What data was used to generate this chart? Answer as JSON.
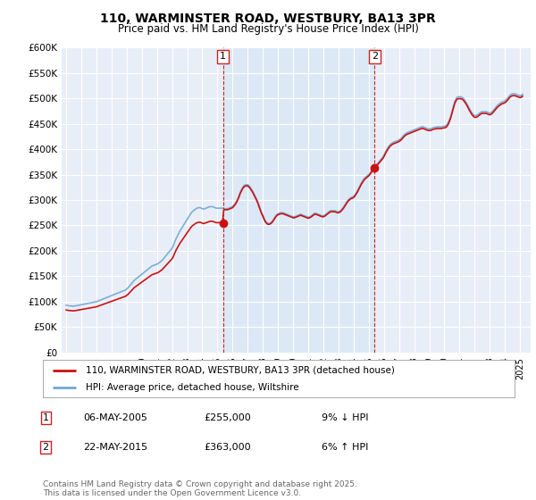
{
  "title": "110, WARMINSTER ROAD, WESTBURY, BA13 3PR",
  "subtitle": "Price paid vs. HM Land Registry's House Price Index (HPI)",
  "ylim": [
    0,
    600000
  ],
  "yticks": [
    0,
    50000,
    100000,
    150000,
    200000,
    250000,
    300000,
    350000,
    400000,
    450000,
    500000,
    550000,
    600000
  ],
  "xlim_start": 1994.7,
  "xlim_end": 2025.7,
  "background_color": "#ffffff",
  "plot_bg_color": "#e8eef8",
  "highlight_bg_color": "#dce8f5",
  "grid_color": "#ffffff",
  "line_color_property": "#cc1111",
  "line_color_hpi": "#6fa8d4",
  "legend_label_property": "110, WARMINSTER ROAD, WESTBURY, BA13 3PR (detached house)",
  "legend_label_hpi": "HPI: Average price, detached house, Wiltshire",
  "table_rows": [
    {
      "num": "1",
      "date": "06-MAY-2005",
      "price": "£255,000",
      "change": "9% ↓ HPI"
    },
    {
      "num": "2",
      "date": "22-MAY-2015",
      "price": "£363,000",
      "change": "6% ↑ HPI"
    }
  ],
  "footer": "Contains HM Land Registry data © Crown copyright and database right 2025.\nThis data is licensed under the Open Government Licence v3.0.",
  "sale1_year": 2005.37,
  "sale1_price": 255000,
  "sale2_year": 2015.38,
  "sale2_price": 363000,
  "hpi_years": [
    1995.0,
    1995.083,
    1995.167,
    1995.25,
    1995.333,
    1995.417,
    1995.5,
    1995.583,
    1995.667,
    1995.75,
    1995.833,
    1995.917,
    1996.0,
    1996.083,
    1996.167,
    1996.25,
    1996.333,
    1996.417,
    1996.5,
    1996.583,
    1996.667,
    1996.75,
    1996.833,
    1996.917,
    1997.0,
    1997.083,
    1997.167,
    1997.25,
    1997.333,
    1997.417,
    1997.5,
    1997.583,
    1997.667,
    1997.75,
    1997.833,
    1997.917,
    1998.0,
    1998.083,
    1998.167,
    1998.25,
    1998.333,
    1998.417,
    1998.5,
    1998.583,
    1998.667,
    1998.75,
    1998.833,
    1998.917,
    1999.0,
    1999.083,
    1999.167,
    1999.25,
    1999.333,
    1999.417,
    1999.5,
    1999.583,
    1999.667,
    1999.75,
    1999.833,
    1999.917,
    2000.0,
    2000.083,
    2000.167,
    2000.25,
    2000.333,
    2000.417,
    2000.5,
    2000.583,
    2000.667,
    2000.75,
    2000.833,
    2000.917,
    2001.0,
    2001.083,
    2001.167,
    2001.25,
    2001.333,
    2001.417,
    2001.5,
    2001.583,
    2001.667,
    2001.75,
    2001.833,
    2001.917,
    2002.0,
    2002.083,
    2002.167,
    2002.25,
    2002.333,
    2002.417,
    2002.5,
    2002.583,
    2002.667,
    2002.75,
    2002.833,
    2002.917,
    2003.0,
    2003.083,
    2003.167,
    2003.25,
    2003.333,
    2003.417,
    2003.5,
    2003.583,
    2003.667,
    2003.75,
    2003.833,
    2003.917,
    2004.0,
    2004.083,
    2004.167,
    2004.25,
    2004.333,
    2004.417,
    2004.5,
    2004.583,
    2004.667,
    2004.75,
    2004.833,
    2004.917,
    2005.0,
    2005.083,
    2005.167,
    2005.25,
    2005.333,
    2005.417,
    2005.5,
    2005.583,
    2005.667,
    2005.75,
    2005.833,
    2005.917,
    2006.0,
    2006.083,
    2006.167,
    2006.25,
    2006.333,
    2006.417,
    2006.5,
    2006.583,
    2006.667,
    2006.75,
    2006.833,
    2006.917,
    2007.0,
    2007.083,
    2007.167,
    2007.25,
    2007.333,
    2007.417,
    2007.5,
    2007.583,
    2007.667,
    2007.75,
    2007.833,
    2007.917,
    2008.0,
    2008.083,
    2008.167,
    2008.25,
    2008.333,
    2008.417,
    2008.5,
    2008.583,
    2008.667,
    2008.75,
    2008.833,
    2008.917,
    2009.0,
    2009.083,
    2009.167,
    2009.25,
    2009.333,
    2009.417,
    2009.5,
    2009.583,
    2009.667,
    2009.75,
    2009.833,
    2009.917,
    2010.0,
    2010.083,
    2010.167,
    2010.25,
    2010.333,
    2010.417,
    2010.5,
    2010.583,
    2010.667,
    2010.75,
    2010.833,
    2010.917,
    2011.0,
    2011.083,
    2011.167,
    2011.25,
    2011.333,
    2011.417,
    2011.5,
    2011.583,
    2011.667,
    2011.75,
    2011.833,
    2011.917,
    2012.0,
    2012.083,
    2012.167,
    2012.25,
    2012.333,
    2012.417,
    2012.5,
    2012.583,
    2012.667,
    2012.75,
    2012.833,
    2012.917,
    2013.0,
    2013.083,
    2013.167,
    2013.25,
    2013.333,
    2013.417,
    2013.5,
    2013.583,
    2013.667,
    2013.75,
    2013.833,
    2013.917,
    2014.0,
    2014.083,
    2014.167,
    2014.25,
    2014.333,
    2014.417,
    2014.5,
    2014.583,
    2014.667,
    2014.75,
    2014.833,
    2014.917,
    2015.0,
    2015.083,
    2015.167,
    2015.25,
    2015.333,
    2015.417,
    2015.5,
    2015.583,
    2015.667,
    2015.75,
    2015.833,
    2015.917,
    2016.0,
    2016.083,
    2016.167,
    2016.25,
    2016.333,
    2016.417,
    2016.5,
    2016.583,
    2016.667,
    2016.75,
    2016.833,
    2016.917,
    2017.0,
    2017.083,
    2017.167,
    2017.25,
    2017.333,
    2017.417,
    2017.5,
    2017.583,
    2017.667,
    2017.75,
    2017.833,
    2017.917,
    2018.0,
    2018.083,
    2018.167,
    2018.25,
    2018.333,
    2018.417,
    2018.5,
    2018.583,
    2018.667,
    2018.75,
    2018.833,
    2018.917,
    2019.0,
    2019.083,
    2019.167,
    2019.25,
    2019.333,
    2019.417,
    2019.5,
    2019.583,
    2019.667,
    2019.75,
    2019.833,
    2019.917,
    2020.0,
    2020.083,
    2020.167,
    2020.25,
    2020.333,
    2020.417,
    2020.5,
    2020.583,
    2020.667,
    2020.75,
    2020.833,
    2020.917,
    2021.0,
    2021.083,
    2021.167,
    2021.25,
    2021.333,
    2021.417,
    2021.5,
    2021.583,
    2021.667,
    2021.75,
    2021.833,
    2021.917,
    2022.0,
    2022.083,
    2022.167,
    2022.25,
    2022.333,
    2022.417,
    2022.5,
    2022.583,
    2022.667,
    2022.75,
    2022.833,
    2022.917,
    2023.0,
    2023.083,
    2023.167,
    2023.25,
    2023.333,
    2023.417,
    2023.5,
    2023.583,
    2023.667,
    2023.75,
    2023.833,
    2023.917,
    2024.0,
    2024.083,
    2024.167,
    2024.25,
    2024.333,
    2024.417,
    2024.5,
    2024.583,
    2024.667,
    2024.75,
    2024.833,
    2024.917,
    2025.0,
    2025.083,
    2025.167
  ],
  "hpi_values": [
    93000,
    92500,
    92000,
    91800,
    91500,
    91200,
    91000,
    91500,
    92000,
    92500,
    93000,
    93500,
    94000,
    94500,
    95000,
    95500,
    96000,
    96500,
    97000,
    97500,
    98000,
    98500,
    99000,
    99500,
    100000,
    101000,
    102000,
    103000,
    104000,
    105000,
    106000,
    107000,
    108000,
    109000,
    110000,
    111000,
    112000,
    113000,
    114000,
    115000,
    116000,
    117000,
    118000,
    119000,
    120000,
    121000,
    122000,
    123000,
    125000,
    127000,
    130000,
    133000,
    136000,
    139000,
    142000,
    144000,
    146000,
    148000,
    150000,
    152000,
    154000,
    156000,
    158000,
    160000,
    162000,
    164000,
    166000,
    168000,
    170000,
    171000,
    172000,
    173000,
    174000,
    175000,
    177000,
    179000,
    181000,
    184000,
    187000,
    190000,
    193000,
    196000,
    199000,
    202000,
    205000,
    210000,
    217000,
    223000,
    228000,
    233000,
    238000,
    242000,
    246000,
    250000,
    254000,
    258000,
    262000,
    266000,
    270000,
    274000,
    277000,
    279000,
    281000,
    283000,
    284000,
    285000,
    285000,
    284000,
    283000,
    282000,
    283000,
    284000,
    285000,
    286000,
    287000,
    287000,
    287000,
    286000,
    285000,
    284000,
    284000,
    284000,
    284000,
    284000,
    284000,
    283000,
    283000,
    283000,
    283000,
    284000,
    285000,
    286000,
    287000,
    290000,
    293000,
    297000,
    302000,
    308000,
    315000,
    320000,
    325000,
    328000,
    330000,
    330000,
    330000,
    328000,
    325000,
    321000,
    317000,
    312000,
    307000,
    302000,
    296000,
    289000,
    282000,
    275000,
    270000,
    264000,
    259000,
    256000,
    254000,
    254000,
    255000,
    257000,
    260000,
    264000,
    268000,
    271000,
    273000,
    274000,
    275000,
    275000,
    275000,
    274000,
    273000,
    272000,
    271000,
    270000,
    269000,
    268000,
    267000,
    267000,
    268000,
    269000,
    270000,
    271000,
    272000,
    271000,
    270000,
    269000,
    268000,
    267000,
    266000,
    267000,
    268000,
    270000,
    272000,
    274000,
    274000,
    273000,
    272000,
    271000,
    270000,
    269000,
    269000,
    270000,
    272000,
    274000,
    276000,
    278000,
    279000,
    279000,
    279000,
    279000,
    278000,
    277000,
    277000,
    278000,
    280000,
    283000,
    286000,
    290000,
    294000,
    298000,
    301000,
    303000,
    305000,
    306000,
    307000,
    310000,
    314000,
    318000,
    323000,
    328000,
    333000,
    337000,
    341000,
    344000,
    346000,
    348000,
    350000,
    353000,
    357000,
    361000,
    364000,
    367000,
    370000,
    372000,
    375000,
    378000,
    381000,
    384000,
    388000,
    393000,
    398000,
    402000,
    406000,
    409000,
    411000,
    413000,
    414000,
    415000,
    416000,
    417000,
    418000,
    420000,
    422000,
    425000,
    428000,
    430000,
    432000,
    433000,
    434000,
    435000,
    436000,
    437000,
    438000,
    439000,
    440000,
    441000,
    442000,
    443000,
    444000,
    444000,
    443000,
    442000,
    441000,
    440000,
    440000,
    440000,
    441000,
    442000,
    443000,
    443000,
    444000,
    444000,
    444000,
    444000,
    444000,
    445000,
    445000,
    446000,
    448000,
    452000,
    458000,
    465000,
    474000,
    483000,
    492000,
    498000,
    502000,
    503000,
    503000,
    503000,
    502000,
    500000,
    497000,
    493000,
    489000,
    484000,
    479000,
    475000,
    471000,
    468000,
    466000,
    466000,
    467000,
    469000,
    471000,
    473000,
    474000,
    474000,
    474000,
    474000,
    473000,
    472000,
    471000,
    472000,
    474000,
    477000,
    480000,
    483000,
    486000,
    488000,
    490000,
    492000,
    493000,
    494000,
    495000,
    497000,
    500000,
    503000,
    506000,
    508000,
    509000,
    509000,
    509000,
    508000,
    507000,
    506000,
    505000,
    506000,
    508000
  ]
}
